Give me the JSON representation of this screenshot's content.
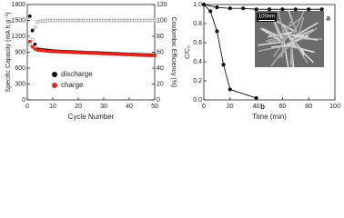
{
  "chart_data": [
    {
      "type": "scatter",
      "x_label": "Cycle Number",
      "y_label": "Specific Capacity (mA h g⁻¹)",
      "y2_label": "Coulombic Efficiency (%)",
      "x": [
        1,
        2,
        3,
        4,
        5,
        6,
        7,
        8,
        9,
        10,
        11,
        12,
        13,
        14,
        15,
        16,
        17,
        18,
        19,
        20,
        21,
        22,
        23,
        24,
        25,
        26,
        27,
        28,
        29,
        30,
        31,
        32,
        33,
        34,
        35,
        36,
        37,
        38,
        39,
        40,
        41,
        42,
        43,
        44,
        45,
        46,
        47,
        48,
        49,
        50
      ],
      "xlim": [
        0,
        50
      ],
      "xticks": [
        0,
        10,
        20,
        30,
        40,
        50
      ],
      "ylim": [
        0,
        1800
      ],
      "yticks": [
        0,
        300,
        600,
        900,
        1200,
        1500,
        1800
      ],
      "y2lim": [
        0,
        120
      ],
      "y2ticks": [
        0,
        20,
        40,
        60,
        80,
        100,
        120
      ],
      "legend": "lower left",
      "series": [
        {
          "name": "discharge",
          "color": "#111111",
          "marker": "filled",
          "values": [
            1580,
            1310,
            1050,
            960,
            950,
            945,
            940,
            935,
            930,
            925,
            920,
            918,
            916,
            914,
            912,
            910,
            908,
            906,
            904,
            902,
            900,
            898,
            896,
            894,
            892,
            890,
            888,
            886,
            884,
            882,
            880,
            878,
            876,
            874,
            872,
            870,
            868,
            866,
            864,
            862,
            860,
            858,
            856,
            854,
            852,
            850,
            849,
            848,
            847,
            846
          ]
        },
        {
          "name": "charge",
          "color": "#e8251d",
          "marker": "filled",
          "values": [
            1100,
            1000,
            960,
            940,
            935,
            930,
            925,
            920,
            915,
            912,
            910,
            908,
            906,
            904,
            902,
            900,
            898,
            896,
            894,
            892,
            890,
            888,
            886,
            884,
            882,
            880,
            878,
            876,
            874,
            872,
            870,
            868,
            866,
            864,
            862,
            860,
            858,
            856,
            854,
            852,
            850,
            848,
            846,
            844,
            842,
            840,
            839,
            838,
            837,
            836
          ]
        },
        {
          "color": "#888888",
          "marker": "open",
          "axis": "y2",
          "values": [
            70,
            76,
            91,
            98,
            99,
            99,
            99,
            100,
            100,
            100,
            100,
            100,
            100,
            100,
            100,
            100,
            100,
            100,
            100,
            100,
            100,
            100,
            100,
            100,
            100,
            100,
            100,
            100,
            100,
            100,
            100,
            100,
            100,
            100,
            100,
            100,
            100,
            100,
            100,
            100,
            100,
            100,
            100,
            100,
            100,
            100,
            100,
            100,
            100,
            100
          ]
        }
      ]
    },
    {
      "type": "line",
      "x_label": "Time (min)",
      "y_label": "C/C₀",
      "inset_label": "100nm",
      "xlim": [
        0,
        100
      ],
      "xticks": [
        0,
        20,
        40,
        60,
        80,
        100
      ],
      "ylim": [
        0,
        1
      ],
      "yticks": [
        {
          "value": 0,
          "label": "0.0"
        },
        0.2,
        0.4,
        0.6,
        0.8,
        {
          "value": 1,
          "label": "1.0"
        }
      ],
      "series": [
        {
          "name": "a",
          "color": "#111111",
          "marker": "filled",
          "x": [
            0,
            10,
            20,
            30,
            40,
            50,
            60,
            70,
            80,
            90
          ],
          "values": [
            1,
            0.97,
            0.96,
            0.96,
            0.95,
            0.95,
            0.95,
            0.95,
            0.95,
            0.95
          ]
        },
        {
          "name": "b",
          "color": "#111111",
          "marker": "filled",
          "x": [
            0,
            5,
            10,
            15,
            20,
            40
          ],
          "values": [
            1,
            0.93,
            0.72,
            0.37,
            0.11,
            0.02
          ]
        }
      ]
    }
  ]
}
